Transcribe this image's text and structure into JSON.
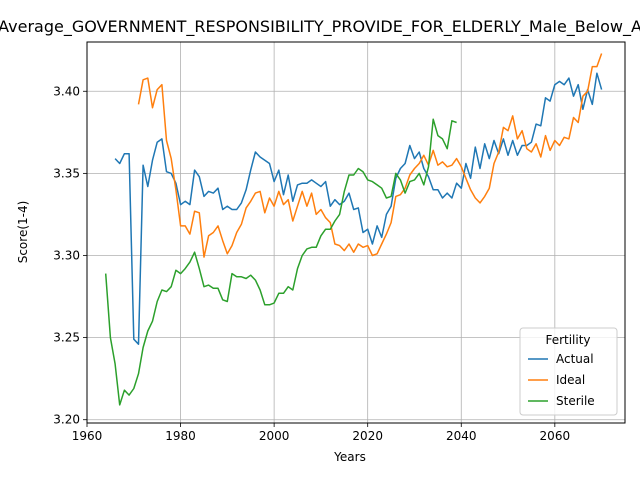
{
  "chart_data": {
    "type": "line",
    "title": "Average_GOVERNMENT_RESPONSIBILITY_PROVIDE_FOR_ELDERLY_Male_Below_Age",
    "xlabel": "Years",
    "ylabel": "Score(1-4)",
    "xlim": [
      1960,
      2075
    ],
    "ylim": [
      3.198,
      3.43
    ],
    "xticks": [
      1960,
      1980,
      2000,
      2020,
      2040,
      2060
    ],
    "yticks": [
      3.2,
      3.25,
      3.3,
      3.35,
      3.4
    ],
    "grid": true,
    "legend": {
      "title": "Fertility",
      "position": "bottom-right"
    },
    "series": [
      {
        "name": "Actual",
        "color": "#1f77b4",
        "x": [
          1966,
          1967,
          1968,
          1969,
          1970,
          1971,
          1972,
          1973,
          1974,
          1975,
          1976,
          1977,
          1978,
          1979,
          1980,
          1981,
          1982,
          1983,
          1984,
          1985,
          1986,
          1987,
          1988,
          1989,
          1990,
          1991,
          1992,
          1993,
          1994,
          1995,
          1996,
          1997,
          1998,
          1999,
          2000,
          2001,
          2002,
          2003,
          2004,
          2005,
          2006,
          2007,
          2008,
          2009,
          2010,
          2011,
          2012,
          2013,
          2014,
          2015,
          2016,
          2017,
          2018,
          2019,
          2020,
          2021,
          2022,
          2023,
          2024,
          2025,
          2026,
          2027,
          2028,
          2029,
          2030,
          2031,
          2032,
          2033,
          2034,
          2035,
          2036,
          2037,
          2038,
          2039,
          2040,
          2041,
          2042,
          2043,
          2044,
          2045,
          2046,
          2047,
          2048,
          2049,
          2050,
          2051,
          2052,
          2053,
          2054,
          2055,
          2056,
          2057,
          2058,
          2059,
          2060,
          2061,
          2062,
          2063,
          2064,
          2065,
          2066,
          2067,
          2068,
          2069,
          2070
        ],
        "values": [
          3.359,
          3.356,
          3.362,
          3.362,
          3.249,
          3.246,
          3.355,
          3.342,
          3.358,
          3.369,
          3.371,
          3.351,
          3.35,
          3.344,
          3.331,
          3.333,
          3.331,
          3.352,
          3.348,
          3.336,
          3.339,
          3.338,
          3.341,
          3.328,
          3.33,
          3.328,
          3.328,
          3.332,
          3.34,
          3.352,
          3.363,
          3.36,
          3.358,
          3.356,
          3.345,
          3.352,
          3.337,
          3.349,
          3.333,
          3.343,
          3.344,
          3.344,
          3.346,
          3.344,
          3.342,
          3.345,
          3.33,
          3.334,
          3.331,
          3.333,
          3.338,
          3.328,
          3.329,
          3.314,
          3.316,
          3.307,
          3.318,
          3.311,
          3.325,
          3.33,
          3.347,
          3.353,
          3.356,
          3.367,
          3.359,
          3.363,
          3.353,
          3.348,
          3.34,
          3.34,
          3.335,
          3.338,
          3.335,
          3.344,
          3.341,
          3.356,
          3.347,
          3.366,
          3.353,
          3.368,
          3.359,
          3.37,
          3.362,
          3.371,
          3.361,
          3.37,
          3.361,
          3.367,
          3.367,
          3.369,
          3.38,
          3.379,
          3.396,
          3.394,
          3.404,
          3.406,
          3.404,
          3.408,
          3.397,
          3.404,
          3.389,
          3.401,
          3.392,
          3.411,
          3.401
        ]
      },
      {
        "name": "Ideal",
        "color": "#ff7f0e",
        "x": [
          1971,
          1972,
          1973,
          1974,
          1975,
          1976,
          1977,
          1978,
          1979,
          1980,
          1981,
          1982,
          1983,
          1984,
          1985,
          1986,
          1987,
          1988,
          1989,
          1990,
          1991,
          1992,
          1993,
          1994,
          1995,
          1996,
          1997,
          1998,
          1999,
          2000,
          2001,
          2002,
          2003,
          2004,
          2005,
          2006,
          2007,
          2008,
          2009,
          2010,
          2011,
          2012,
          2013,
          2014,
          2015,
          2016,
          2017,
          2018,
          2019,
          2020,
          2021,
          2022,
          2023,
          2024,
          2025,
          2026,
          2027,
          2028,
          2029,
          2030,
          2031,
          2032,
          2033,
          2034,
          2035,
          2036,
          2037,
          2038,
          2039,
          2040,
          2041,
          2042,
          2043,
          2044,
          2045,
          2046,
          2047,
          2048,
          2049,
          2050,
          2051,
          2052,
          2053,
          2054,
          2055,
          2056,
          2057,
          2058,
          2059,
          2060,
          2061,
          2062,
          2063,
          2064,
          2065,
          2066,
          2067,
          2068,
          2069,
          2070
        ],
        "values": [
          3.392,
          3.407,
          3.408,
          3.39,
          3.401,
          3.404,
          3.37,
          3.359,
          3.34,
          3.318,
          3.318,
          3.313,
          3.327,
          3.326,
          3.299,
          3.312,
          3.314,
          3.318,
          3.309,
          3.301,
          3.306,
          3.314,
          3.319,
          3.329,
          3.333,
          3.338,
          3.339,
          3.326,
          3.335,
          3.33,
          3.339,
          3.331,
          3.334,
          3.321,
          3.33,
          3.339,
          3.33,
          3.338,
          3.325,
          3.328,
          3.323,
          3.32,
          3.307,
          3.306,
          3.303,
          3.307,
          3.302,
          3.307,
          3.305,
          3.306,
          3.3,
          3.301,
          3.307,
          3.313,
          3.32,
          3.336,
          3.337,
          3.341,
          3.349,
          3.353,
          3.356,
          3.361,
          3.355,
          3.364,
          3.355,
          3.357,
          3.354,
          3.355,
          3.359,
          3.354,
          3.347,
          3.34,
          3.335,
          3.332,
          3.336,
          3.341,
          3.356,
          3.363,
          3.378,
          3.376,
          3.385,
          3.371,
          3.376,
          3.365,
          3.363,
          3.368,
          3.36,
          3.373,
          3.364,
          3.37,
          3.367,
          3.372,
          3.371,
          3.384,
          3.381,
          3.397,
          3.4,
          3.415,
          3.415,
          3.423
        ]
      },
      {
        "name": "Sterile",
        "color": "#2ca02c",
        "x": [
          1964,
          1965,
          1966,
          1967,
          1968,
          1969,
          1970,
          1971,
          1972,
          1973,
          1974,
          1975,
          1976,
          1977,
          1978,
          1979,
          1980,
          1981,
          1982,
          1983,
          1984,
          1985,
          1986,
          1987,
          1988,
          1989,
          1990,
          1991,
          1992,
          1993,
          1994,
          1995,
          1996,
          1997,
          1998,
          1999,
          2000,
          2001,
          2002,
          2003,
          2004,
          2005,
          2006,
          2007,
          2008,
          2009,
          2010,
          2011,
          2012,
          2013,
          2014,
          2015,
          2016,
          2017,
          2018,
          2019,
          2020,
          2021,
          2022,
          2023,
          2024,
          2025,
          2026,
          2027,
          2028,
          2029,
          2030,
          2031,
          2032,
          2033,
          2034,
          2035,
          2036,
          2037,
          2038,
          2039
        ],
        "values": [
          3.289,
          3.25,
          3.234,
          3.209,
          3.218,
          3.215,
          3.219,
          3.228,
          3.244,
          3.254,
          3.26,
          3.272,
          3.279,
          3.278,
          3.281,
          3.291,
          3.289,
          3.292,
          3.296,
          3.302,
          3.292,
          3.281,
          3.282,
          3.28,
          3.28,
          3.273,
          3.272,
          3.289,
          3.287,
          3.287,
          3.286,
          3.288,
          3.285,
          3.279,
          3.27,
          3.27,
          3.271,
          3.277,
          3.277,
          3.281,
          3.279,
          3.292,
          3.3,
          3.304,
          3.305,
          3.305,
          3.312,
          3.316,
          3.316,
          3.321,
          3.325,
          3.339,
          3.349,
          3.349,
          3.353,
          3.351,
          3.346,
          3.345,
          3.343,
          3.341,
          3.335,
          3.336,
          3.35,
          3.346,
          3.338,
          3.345,
          3.346,
          3.35,
          3.343,
          3.354,
          3.383,
          3.373,
          3.371,
          3.365,
          3.382,
          3.381
        ]
      }
    ]
  }
}
